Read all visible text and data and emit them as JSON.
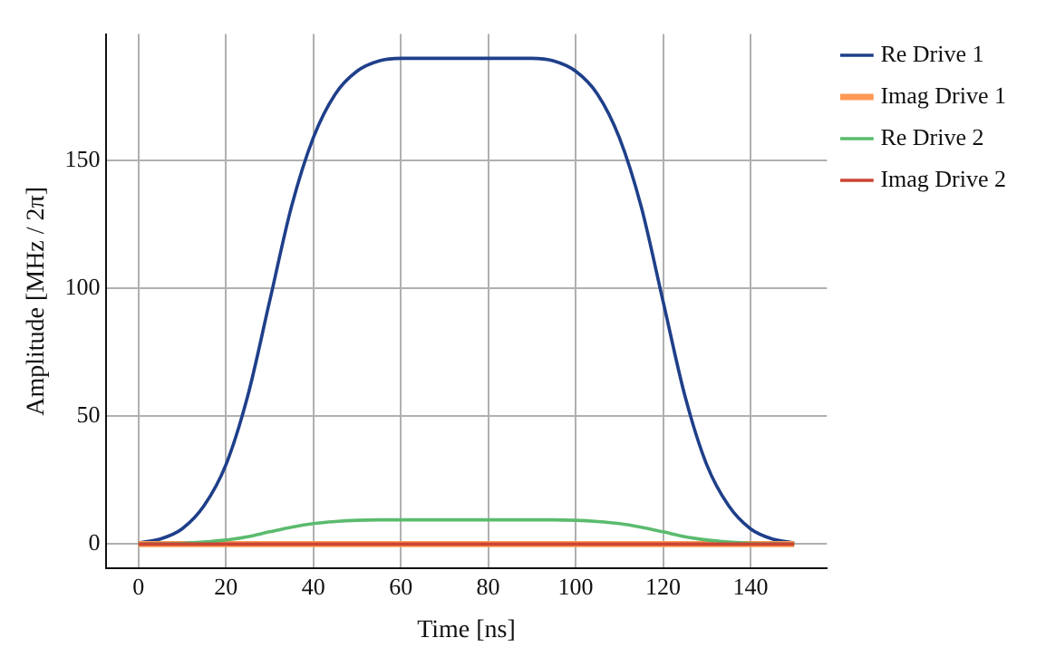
{
  "chart_data": {
    "type": "line",
    "xlabel": "Time [ns]",
    "ylabel": "Amplitude [MHz / 2π]",
    "x": [
      0,
      5,
      10,
      15,
      20,
      25,
      30,
      35,
      40,
      45,
      50,
      55,
      60,
      65,
      70,
      75,
      80,
      85,
      90,
      95,
      100,
      105,
      110,
      115,
      120,
      125,
      130,
      135,
      140,
      145,
      150
    ],
    "series": [
      {
        "name": "Re Drive 1",
        "color": "#1f3f8a",
        "values": [
          0.5,
          2,
          6,
          15,
          31,
          58,
          95,
          132,
          159,
          176,
          185,
          189,
          190,
          190,
          190,
          190,
          190,
          190,
          190,
          189,
          185,
          176,
          159,
          132,
          95,
          58,
          31,
          15,
          6,
          2,
          0.5
        ]
      },
      {
        "name": "Imag Drive 1",
        "color": "#ff9955",
        "values": [
          0,
          0,
          0,
          0,
          0,
          0,
          0,
          0,
          0,
          0,
          0,
          0,
          0,
          0,
          0,
          0,
          0,
          0,
          0,
          0,
          0,
          0,
          0,
          0,
          0,
          0,
          0,
          0,
          0,
          0,
          0
        ]
      },
      {
        "name": "Re Drive 2",
        "color": "#5bbb6e",
        "values": [
          0,
          0.1,
          0.3,
          0.8,
          1.6,
          2.9,
          4.8,
          6.6,
          8,
          8.8,
          9.3,
          9.5,
          9.5,
          9.5,
          9.5,
          9.5,
          9.5,
          9.5,
          9.5,
          9.5,
          9.3,
          8.8,
          8,
          6.6,
          4.8,
          2.9,
          1.6,
          0.8,
          0.3,
          0.1,
          0
        ]
      },
      {
        "name": "Imag Drive 2",
        "color": "#cc4433",
        "values": [
          0,
          0,
          0,
          0,
          0,
          0,
          0,
          0,
          0,
          0,
          0,
          0,
          0,
          0,
          0,
          0,
          0,
          0,
          0,
          0,
          0,
          0,
          0,
          0,
          0,
          0,
          0,
          0,
          0,
          0,
          0
        ]
      }
    ],
    "xlim": [
      -7.5,
      157.5
    ],
    "xticks": [
      0,
      20,
      40,
      60,
      80,
      100,
      120,
      140
    ],
    "ylim": [
      -9.5,
      199.5
    ],
    "yticks": [
      0,
      50,
      100,
      150
    ],
    "grid": true,
    "legend": "right",
    "marker": "none",
    "line_style": "solid"
  }
}
